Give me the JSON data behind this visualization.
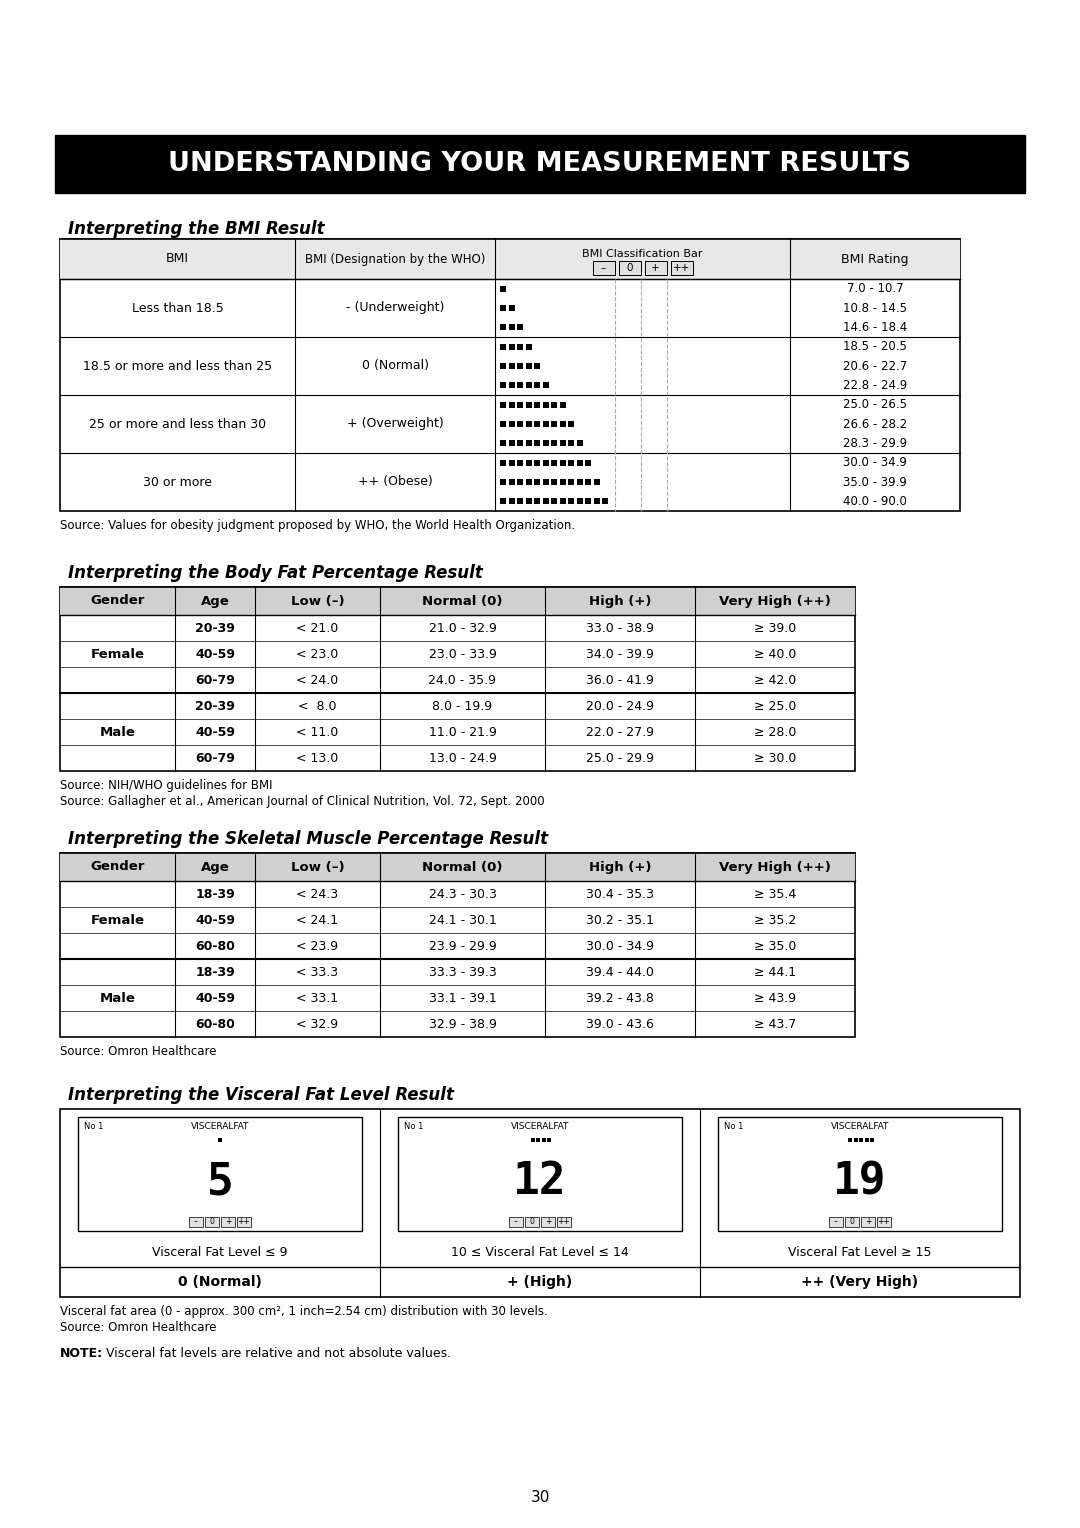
{
  "title": "UNDERSTANDING YOUR MEASUREMENT RESULTS",
  "section1_title": "Interpreting the BMI Result",
  "bmi_rows": [
    {
      "bmi": "Less than 18.5",
      "who": "- (Underweight)",
      "dot_counts": [
        1,
        2,
        3
      ],
      "ratings": [
        "7.0 - 10.7",
        "10.8 - 14.5",
        "14.6 - 18.4"
      ]
    },
    {
      "bmi": "18.5 or more and less than 25",
      "who": "0 (Normal)",
      "dot_counts": [
        4,
        5,
        6
      ],
      "ratings": [
        "18.5 - 20.5",
        "20.6 - 22.7",
        "22.8 - 24.9"
      ]
    },
    {
      "bmi": "25 or more and less than 30",
      "who": "+ (Overweight)",
      "dot_counts": [
        8,
        9,
        10
      ],
      "ratings": [
        "25.0 - 26.5",
        "26.6 - 28.2",
        "28.3 - 29.9"
      ]
    },
    {
      "bmi": "30 or more",
      "who": "++ (Obese)",
      "dot_counts": [
        11,
        12,
        13
      ],
      "ratings": [
        "30.0 - 34.9",
        "35.0 - 39.9",
        "40.0 - 90.0"
      ]
    }
  ],
  "bmi_source": "Source: Values for obesity judgment proposed by WHO, the World Health Organization.",
  "section2_title": "Interpreting the Body Fat Percentage Result",
  "bf_headers": [
    "Gender",
    "Age",
    "Low (–)",
    "Normal (0)",
    "High (+)",
    "Very High (++)"
  ],
  "bf_rows": [
    [
      "Female",
      "20-39",
      "< 21.0",
      "21.0 - 32.9",
      "33.0 - 38.9",
      "≥ 39.0"
    ],
    [
      "Female",
      "40-59",
      "< 23.0",
      "23.0 - 33.9",
      "34.0 - 39.9",
      "≥ 40.0"
    ],
    [
      "Female",
      "60-79",
      "< 24.0",
      "24.0 - 35.9",
      "36.0 - 41.9",
      "≥ 42.0"
    ],
    [
      "Male",
      "20-39",
      "<  8.0",
      "8.0 - 19.9",
      "20.0 - 24.9",
      "≥ 25.0"
    ],
    [
      "Male",
      "40-59",
      "< 11.0",
      "11.0 - 21.9",
      "22.0 - 27.9",
      "≥ 28.0"
    ],
    [
      "Male",
      "60-79",
      "< 13.0",
      "13.0 - 24.9",
      "25.0 - 29.9",
      "≥ 30.0"
    ]
  ],
  "bf_source1": "Source: NIH/WHO guidelines for BMI",
  "bf_source2": "Source: Gallagher et al., American Journal of Clinical Nutrition, Vol. 72, Sept. 2000",
  "section3_title": "Interpreting the Skeletal Muscle Percentage Result",
  "sm_headers": [
    "Gender",
    "Age",
    "Low (–)",
    "Normal (0)",
    "High (+)",
    "Very High (++)"
  ],
  "sm_rows": [
    [
      "Female",
      "18-39",
      "< 24.3",
      "24.3 - 30.3",
      "30.4 - 35.3",
      "≥ 35.4"
    ],
    [
      "Female",
      "40-59",
      "< 24.1",
      "24.1 - 30.1",
      "30.2 - 35.1",
      "≥ 35.2"
    ],
    [
      "Female",
      "60-80",
      "< 23.9",
      "23.9 - 29.9",
      "30.0 - 34.9",
      "≥ 35.0"
    ],
    [
      "Male",
      "18-39",
      "< 33.3",
      "33.3 - 39.3",
      "39.4 - 44.0",
      "≥ 44.1"
    ],
    [
      "Male",
      "40-59",
      "< 33.1",
      "33.1 - 39.1",
      "39.2 - 43.8",
      "≥ 43.9"
    ],
    [
      "Male",
      "60-80",
      "< 32.9",
      "32.9 - 38.9",
      "39.0 - 43.6",
      "≥ 43.7"
    ]
  ],
  "sm_source": "Source: Omron Healthcare",
  "section4_title": "Interpreting the Visceral Fat Level Result",
  "vf_panels": [
    {
      "label": "Visceral Fat Level ≤ 9",
      "sublabel": "0 (Normal)",
      "display": "5",
      "bar_dots": 1
    },
    {
      "label": "10 ≤ Visceral Fat Level ≤ 14",
      "sublabel": "+ (High)",
      "display": "12",
      "bar_dots": 4
    },
    {
      "label": "Visceral Fat Level ≥ 15",
      "sublabel": "++ (Very High)",
      "display": "19",
      "bar_dots": 5
    }
  ],
  "vf_source1": "Visceral fat area (0 - approx. 300 cm², 1 inch=2.54 cm) distribution with 30 levels.",
  "vf_source2": "Source: Omron Healthcare",
  "note_bold": "NOTE:",
  "note_rest": " Visceral fat levels are relative and not absolute values.",
  "page_number": "30"
}
